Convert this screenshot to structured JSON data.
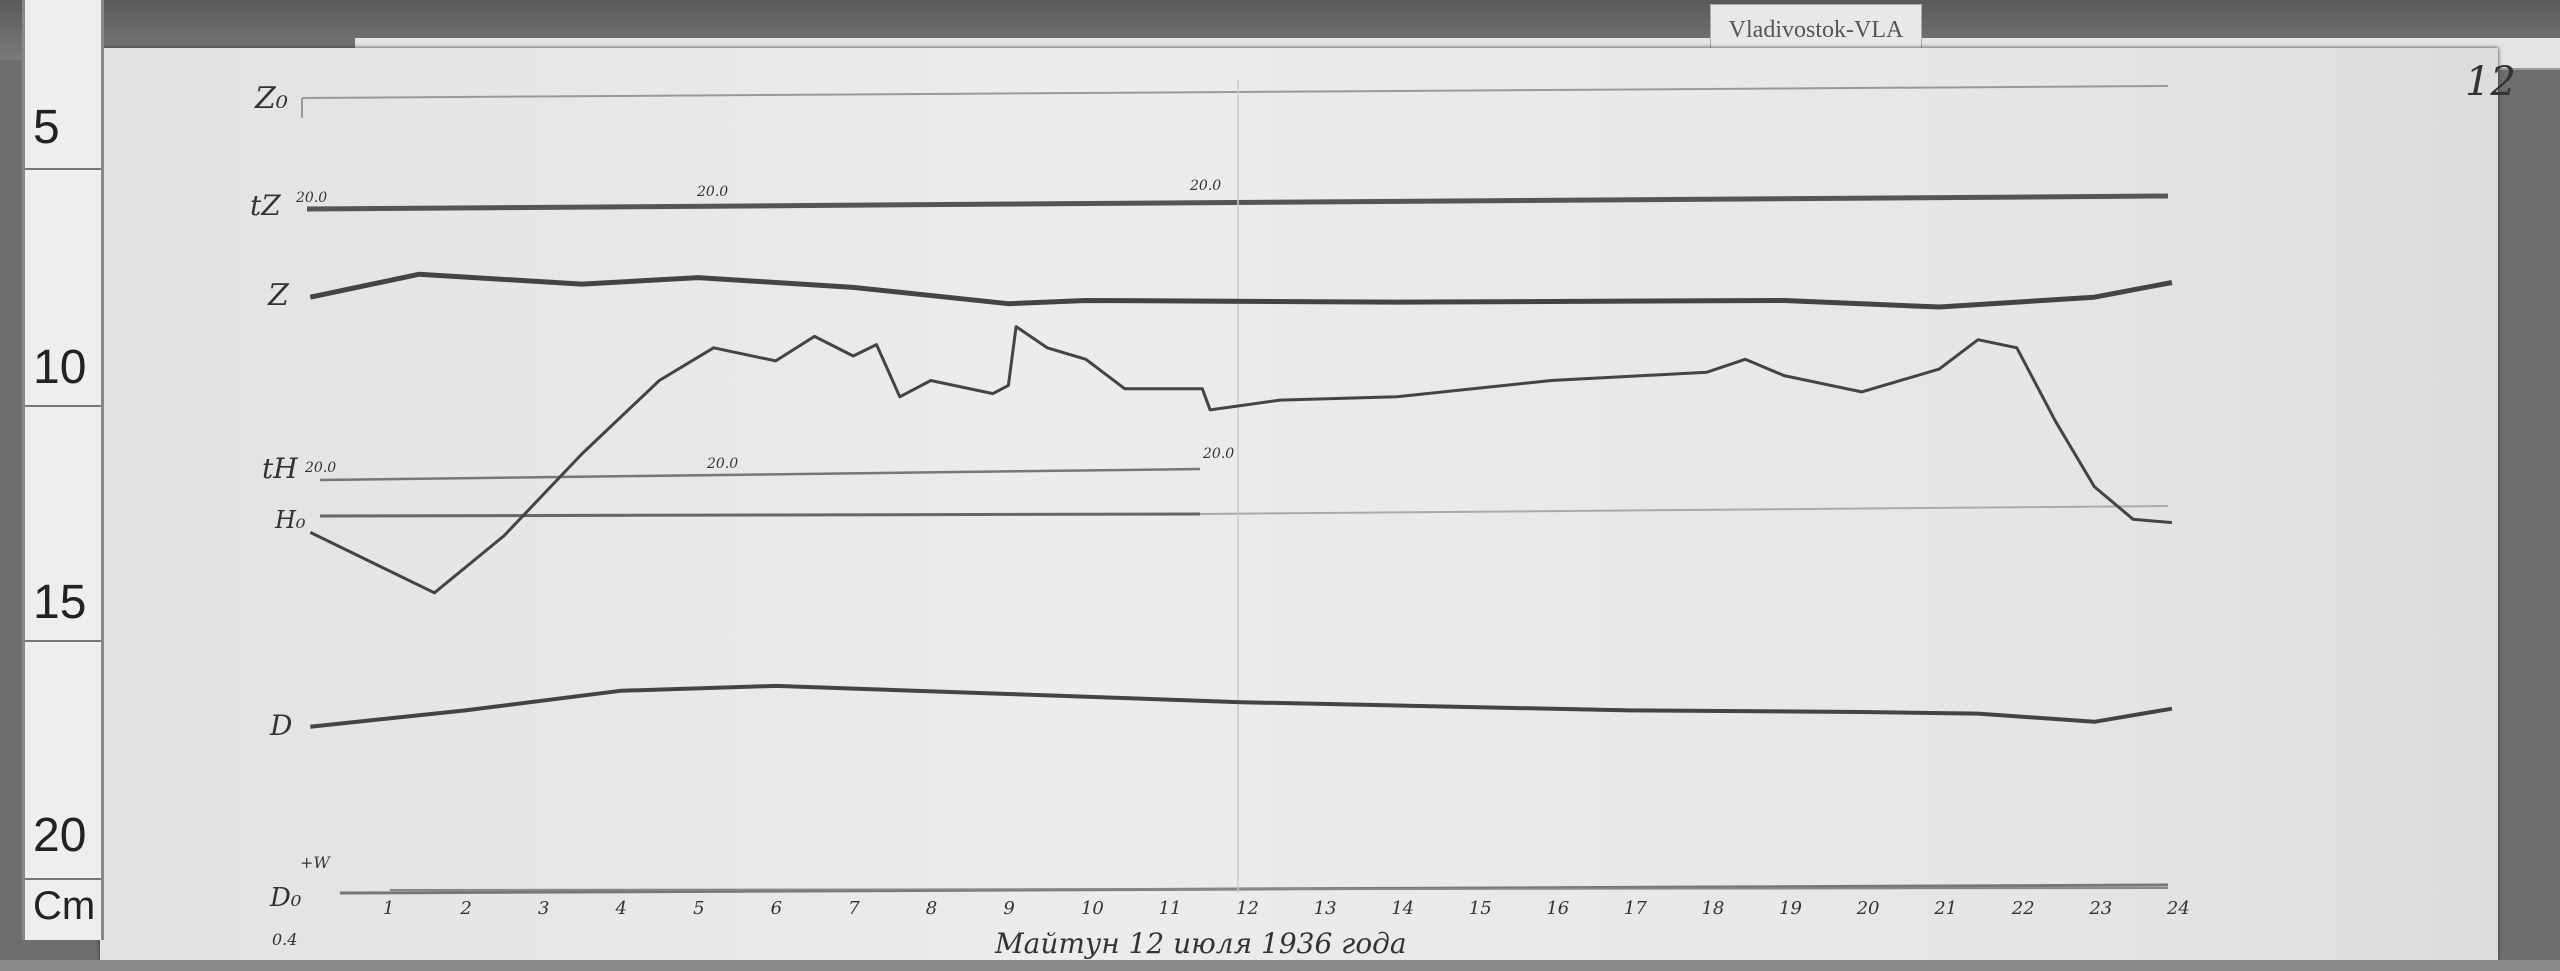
{
  "station_label": "Vladivostok-VLA",
  "sheet_number": "12",
  "caption": "Майтун 12 июля 1936 года",
  "ruler": {
    "marks": [
      "5",
      "10",
      "15",
      "20"
    ],
    "unit": "Cm"
  },
  "trace_labels": {
    "z0": "Z₀",
    "tz": "tZ",
    "z": "Z",
    "th": "tH",
    "h0": "H₀",
    "d": "D",
    "d0": "D₀",
    "plus_w": "+W",
    "corner": "0.4"
  },
  "temp_labels": {
    "tz": [
      "20.0",
      "20.0",
      "20.0"
    ],
    "th": [
      "20.0",
      "20.0",
      "20.0"
    ]
  },
  "colors": {
    "paper": "#e6e6e6",
    "trace": "#444444"
  },
  "chart_data": {
    "type": "line",
    "title": "",
    "xlabel": "",
    "ylabel": "",
    "x_ticks": [
      "1",
      "2",
      "3",
      "4",
      "5",
      "6",
      "7",
      "8",
      "9",
      "10",
      "11",
      "12",
      "13",
      "14",
      "15",
      "16",
      "17",
      "18",
      "19",
      "20",
      "21",
      "22",
      "23",
      "24"
    ],
    "xlim": [
      0,
      24
    ],
    "grid": false,
    "series": [
      {
        "name": "Z",
        "x": [
          0,
          1.4,
          3.5,
          5,
          7,
          9,
          10,
          14,
          19,
          21,
          23,
          24
        ],
        "y": [
          3,
          17,
          11,
          15,
          9,
          -1,
          1,
          0,
          1,
          -3,
          3,
          12
        ]
      },
      {
        "name": "H",
        "x": [
          0,
          1.6,
          2.5,
          3.5,
          4.5,
          5.2,
          6,
          6.5,
          7,
          7.3,
          7.6,
          8,
          8.8,
          9,
          9.1,
          9.5,
          10,
          10.5,
          11.5,
          11.6,
          12.5,
          14,
          16,
          18,
          18.5,
          19,
          20,
          21,
          21.5,
          22,
          22.5,
          23,
          23.5,
          24
        ],
        "y": [
          -8,
          -45,
          -10,
          40,
          85,
          105,
          97,
          112,
          100,
          107,
          75,
          85,
          77,
          82,
          118,
          105,
          98,
          80,
          80,
          67,
          73,
          75,
          85,
          90,
          98,
          88,
          78,
          92,
          110,
          105,
          60,
          20,
          0,
          -2
        ]
      },
      {
        "name": "D",
        "x": [
          0,
          2,
          4,
          6,
          9,
          12,
          17,
          20,
          21.5,
          23,
          24
        ],
        "y": [
          -10,
          0,
          12,
          15,
          10,
          5,
          0,
          -1,
          -2,
          -7,
          1
        ]
      }
    ]
  }
}
